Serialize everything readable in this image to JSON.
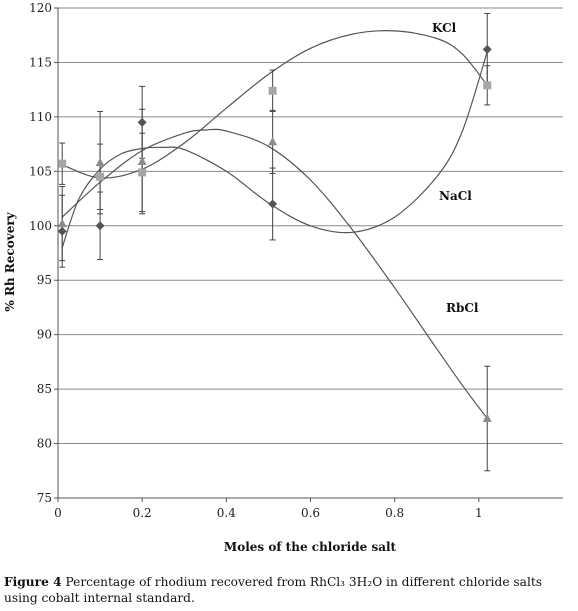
{
  "chart_data": {
    "type": "line",
    "xlabel": "Moles of the chloride salt",
    "ylabel": "% Rh Recovery",
    "xlim": [
      0,
      1.2
    ],
    "ylim": [
      75,
      120
    ],
    "xticks": [
      0,
      0.2,
      0.4,
      0.6,
      0.8,
      1
    ],
    "xtick_labels": [
      "0",
      "0.2",
      "0.4",
      "0.6",
      "0.8",
      "1"
    ],
    "yticks": [
      75,
      80,
      85,
      90,
      95,
      100,
      105,
      110,
      115,
      120
    ],
    "ytick_labels": [
      "75",
      "80",
      "85",
      "90",
      "95",
      "100",
      "105",
      "110",
      "115",
      "120"
    ],
    "grid": "horizontal",
    "series": [
      {
        "name": "KCl",
        "marker": "square",
        "color": "#a6a6a6",
        "x": [
          0.01,
          0.1,
          0.2,
          0.51,
          1.02
        ],
        "y": [
          105.7,
          104.5,
          104.9,
          112.4,
          112.9
        ],
        "err": [
          1.9,
          3.0,
          3.6,
          1.9,
          1.8
        ],
        "fit": [
          [
            0.01,
            105.6
          ],
          [
            0.1,
            104.4
          ],
          [
            0.2,
            105.2
          ],
          [
            0.3,
            107.6
          ],
          [
            0.4,
            110.8
          ],
          [
            0.5,
            113.9
          ],
          [
            0.6,
            116.3
          ],
          [
            0.7,
            117.6
          ],
          [
            0.8,
            117.9
          ],
          [
            0.9,
            117.2
          ],
          [
            0.96,
            115.8
          ],
          [
            1.02,
            112.9
          ]
        ]
      },
      {
        "name": "NaCl",
        "marker": "diamond",
        "color": "#555555",
        "x": [
          0.01,
          0.1,
          0.2,
          0.51,
          1.02
        ],
        "y": [
          99.5,
          100.0,
          109.5,
          102.0,
          116.2
        ],
        "err": [
          3.3,
          3.1,
          3.3,
          3.3,
          3.3
        ],
        "fit": [
          [
            0.01,
            98.0
          ],
          [
            0.05,
            102.5
          ],
          [
            0.1,
            105.2
          ],
          [
            0.15,
            106.6
          ],
          [
            0.2,
            107.1
          ],
          [
            0.25,
            107.2
          ],
          [
            0.3,
            107.0
          ],
          [
            0.4,
            105.0
          ],
          [
            0.5,
            102.1
          ],
          [
            0.6,
            100.0
          ],
          [
            0.7,
            99.4
          ],
          [
            0.8,
            100.8
          ],
          [
            0.9,
            104.5
          ],
          [
            0.96,
            108.6
          ],
          [
            1.02,
            116.0
          ]
        ]
      },
      {
        "name": "RbCl",
        "marker": "triangle",
        "color": "#8c8c8c",
        "x": [
          0.01,
          0.1,
          0.2,
          0.51,
          1.02
        ],
        "y": [
          100.2,
          105.8,
          105.9,
          107.7,
          82.3
        ],
        "err": [
          3.4,
          4.7,
          4.8,
          2.9,
          4.8
        ],
        "fit": [
          [
            0.01,
            100.8
          ],
          [
            0.1,
            104.0
          ],
          [
            0.2,
            106.9
          ],
          [
            0.3,
            108.5
          ],
          [
            0.35,
            108.8
          ],
          [
            0.4,
            108.7
          ],
          [
            0.5,
            107.3
          ],
          [
            0.6,
            104.2
          ],
          [
            0.7,
            99.6
          ],
          [
            0.8,
            94.3
          ],
          [
            0.9,
            88.7
          ],
          [
            0.96,
            85.4
          ],
          [
            1.02,
            82.3
          ]
        ]
      }
    ]
  },
  "caption": {
    "figure": "Figure 4",
    "text": "Percentage of rhodium recovered from RhCl₃ 3H₂O in different chloride salts using cobalt internal standard."
  }
}
